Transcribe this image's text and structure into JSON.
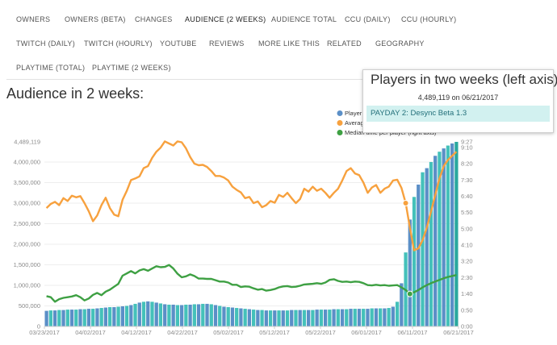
{
  "nav": {
    "tabs": [
      {
        "label": "OWNERS",
        "active": false
      },
      {
        "label": "OWNERS (BETA)",
        "active": false
      },
      {
        "label": "CHANGES",
        "active": false
      },
      {
        "label": "AUDIENCE (2 WEEKS)",
        "active": true
      },
      {
        "label": "AUDIENCE TOTAL",
        "active": false
      },
      {
        "label": "CCU (DAILY)",
        "active": false
      },
      {
        "label": "CCU (HOURLY)",
        "active": false
      },
      {
        "label": "TWITCH (DAILY)",
        "active": false
      },
      {
        "label": "TWITCH (HOURLY)",
        "active": false
      },
      {
        "label": "YOUTUBE",
        "active": false
      },
      {
        "label": "REVIEWS",
        "active": false
      },
      {
        "label": "MORE LIKE THIS",
        "active": false
      },
      {
        "label": "RELATED",
        "active": false
      },
      {
        "label": "GEOGRAPHY",
        "active": false
      },
      {
        "label": "PLAYTIME (TOTAL)",
        "active": false
      },
      {
        "label": "PLAYTIME (2 WEEKS)",
        "active": false
      }
    ]
  },
  "page": {
    "title": "Audience in 2 weeks:"
  },
  "tooltip": {
    "title": "Players in two weeks (left axis)",
    "value_line": "4,489,119 on 06/21/2017",
    "item": "PAYDAY 2: Desync Beta 1.3"
  },
  "colors": {
    "players_bar": "#5b8fc7",
    "players_bar_alt": "#44c1ba",
    "players_bar_highlight": "#2aa89e",
    "average": "#f7a13e",
    "median": "#3ea043",
    "axis_text": "#8a8a8a",
    "grid": "#eeeeee"
  },
  "chart_data": {
    "type": "bar",
    "title": "",
    "x_tick_labels": [
      "03/23/2017",
      "04/02/2017",
      "04/12/2017",
      "04/22/2017",
      "05/02/2017",
      "05/12/2017",
      "05/22/2017",
      "06/01/2017",
      "06/11/2017",
      "06/21/2017"
    ],
    "x_range": [
      "03/23/2017",
      "06/21/2017"
    ],
    "left_axis_ticks": [
      "4,489,119",
      "4,000,000",
      "3,500,000",
      "3,000,000",
      "2,500,000",
      "2,000,000",
      "1,500,000",
      "1,000,000",
      "500,000",
      "0"
    ],
    "left_axis_range": [
      0,
      4489119
    ],
    "right_axis_ticks": [
      "9:27",
      "9:10",
      "8:20",
      "7:30",
      "6:40",
      "5:50",
      "5:00",
      "4:10",
      "3:20",
      "2:30",
      "1:40",
      "0:50",
      "0:00"
    ],
    "right_axis_range_minutes": [
      0,
      567
    ],
    "grid": true,
    "legend": {
      "placement": "top-right",
      "entries": [
        "Player",
        "Averag",
        "Median time per player (right axis)"
      ]
    },
    "series": [
      {
        "name": "Player",
        "type": "bar",
        "axis": "left",
        "values": [
          380000,
          390000,
          390000,
          400000,
          400000,
          410000,
          410000,
          410000,
          420000,
          420000,
          430000,
          430000,
          440000,
          450000,
          460000,
          470000,
          470000,
          480000,
          490000,
          500000,
          520000,
          550000,
          580000,
          600000,
          610000,
          600000,
          580000,
          560000,
          540000,
          530000,
          530000,
          520000,
          520000,
          530000,
          530000,
          540000,
          540000,
          550000,
          550000,
          540000,
          520000,
          500000,
          480000,
          470000,
          460000,
          450000,
          440000,
          430000,
          420000,
          410000,
          400000,
          400000,
          390000,
          390000,
          390000,
          390000,
          390000,
          390000,
          400000,
          400000,
          400000,
          400000,
          400000,
          400000,
          410000,
          410000,
          410000,
          410000,
          420000,
          420000,
          420000,
          420000,
          430000,
          430000,
          430000,
          430000,
          430000,
          440000,
          440000,
          440000,
          440000,
          450000,
          480000,
          600000,
          1050000,
          1800000,
          2600000,
          3150000,
          3450000,
          3750000,
          3850000,
          4000000,
          4150000,
          4250000,
          4330000,
          4400000,
          4450000,
          4489119
        ]
      },
      {
        "name": "Averag",
        "type": "line",
        "axis": "left",
        "values": [
          2880000,
          2980000,
          3030000,
          2950000,
          3120000,
          3050000,
          3180000,
          3140000,
          3170000,
          3000000,
          2800000,
          2560000,
          2700000,
          2950000,
          3130000,
          2880000,
          2720000,
          2680000,
          3080000,
          3300000,
          3560000,
          3600000,
          3650000,
          3850000,
          3900000,
          4100000,
          4250000,
          4350000,
          4500000,
          4450000,
          4400000,
          4500000,
          4480000,
          4330000,
          4120000,
          3960000,
          3920000,
          3930000,
          3880000,
          3780000,
          3660000,
          3660000,
          3620000,
          3550000,
          3400000,
          3320000,
          3260000,
          3120000,
          3150000,
          3000000,
          3040000,
          2900000,
          2950000,
          3050000,
          3010000,
          3200000,
          3150000,
          3250000,
          3120000,
          3000000,
          3100000,
          3350000,
          3280000,
          3400000,
          3300000,
          3350000,
          3250000,
          3130000,
          3250000,
          3350000,
          3550000,
          3780000,
          3850000,
          3720000,
          3680000,
          3500000,
          3250000,
          3380000,
          3440000,
          3250000,
          3350000,
          3400000,
          3550000,
          3570000,
          3370000,
          3000000,
          2400000,
          1850000,
          1900000,
          2100000,
          2400000,
          2800000,
          3200000,
          3600000,
          3900000,
          4050000,
          4150000,
          4250000
        ]
      },
      {
        "name": "Median time per player (right axis)",
        "type": "line",
        "axis": "right",
        "values": [
          93,
          90,
          76,
          84,
          88,
          90,
          92,
          96,
          90,
          80,
          86,
          97,
          103,
          96,
          107,
          113,
          122,
          131,
          156,
          163,
          170,
          163,
          172,
          176,
          171,
          178,
          185,
          182,
          183,
          189,
          178,
          162,
          151,
          154,
          160,
          155,
          147,
          147,
          146,
          146,
          142,
          138,
          138,
          135,
          128,
          128,
          121,
          123,
          122,
          117,
          113,
          115,
          110,
          112,
          115,
          120,
          123,
          124,
          121,
          122,
          125,
          129,
          130,
          131,
          133,
          131,
          135,
          143,
          145,
          140,
          137,
          138,
          136,
          138,
          137,
          133,
          127,
          126,
          128,
          126,
          127,
          125,
          126,
          127,
          120,
          112,
          100,
          105,
          112,
          120,
          127,
          133,
          138,
          143,
          148,
          152,
          155,
          158
        ]
      }
    ]
  }
}
